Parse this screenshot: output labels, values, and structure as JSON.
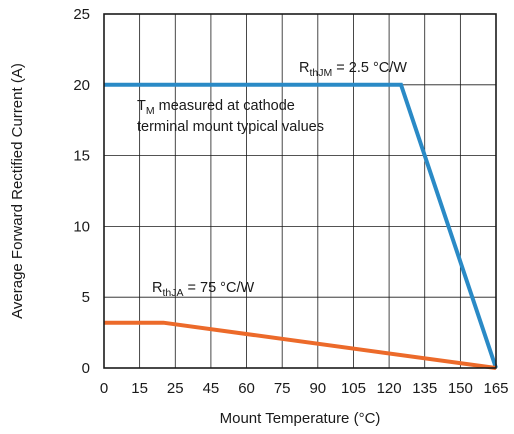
{
  "chart_data": {
    "type": "line",
    "xlabel": "Mount Temperature (°C)",
    "ylabel": "Average Forward Rectified Current (A)",
    "xlim": [
      0,
      165
    ],
    "ylim": [
      0,
      25
    ],
    "x_ticks": [
      "0",
      "15",
      "25",
      "45",
      "60",
      "75",
      "90",
      "105",
      "120",
      "135",
      "150",
      "165"
    ],
    "y_ticks": [
      "0",
      "5",
      "10",
      "15",
      "20",
      "25"
    ],
    "grid": true,
    "series": [
      {
        "color": "#2a8ac6",
        "x": [
          0,
          125,
          165
        ],
        "y": [
          20,
          20,
          0
        ]
      },
      {
        "color": "#ec6a2a",
        "x": [
          0,
          25,
          165
        ],
        "y": [
          3.2,
          3.2,
          0
        ]
      }
    ],
    "annotations": {
      "rthjm": {
        "main": "R",
        "sub": "thJM",
        "rest": " = 2.5 °C/W"
      },
      "tm_note": {
        "main": "T",
        "sub": "M",
        "rest": " measured at cathode",
        "line2": "terminal mount typical values"
      },
      "rthja": {
        "main": "R",
        "sub": "thJA",
        "rest": " = 75 °C/W"
      }
    }
  }
}
